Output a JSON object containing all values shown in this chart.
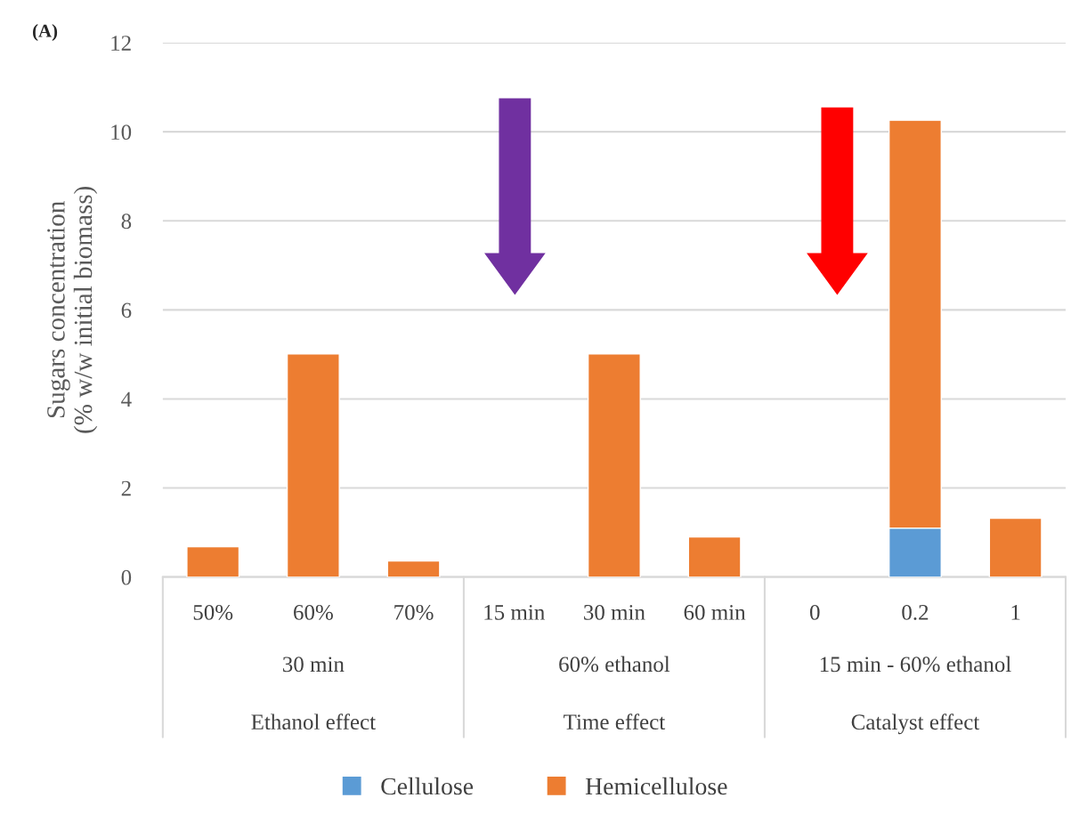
{
  "chart_data": {
    "type": "bar",
    "stacked": true,
    "ylabel": "Sugars concentration\n(% w/w initial biomass)",
    "categories": [
      "50%",
      "60%",
      "70%",
      "15 min",
      "30 min",
      "60 min",
      "0",
      "0.2",
      "1"
    ],
    "series": [
      {
        "name": "Cellulose",
        "color": "#5b9bd5",
        "values": [
          null,
          null,
          null,
          null,
          null,
          null,
          null,
          1.1,
          null
        ]
      },
      {
        "name": "Hemicellulose",
        "color": "#ed7d31",
        "values": [
          0.68,
          5.01,
          0.36,
          null,
          5.01,
          0.9,
          null,
          9.16,
          1.32
        ]
      }
    ],
    "ylim": [
      0,
      12
    ],
    "yticks": [
      0,
      2,
      4,
      6,
      8,
      10,
      12
    ],
    "grid": "y",
    "legend": "bottom",
    "annotations": [
      "(A)",
      "30 min",
      "Ethanol effect",
      "60% ethanol",
      "Time effect",
      "15 min - 60% ethanol",
      "Catalyst effect"
    ]
  }
}
